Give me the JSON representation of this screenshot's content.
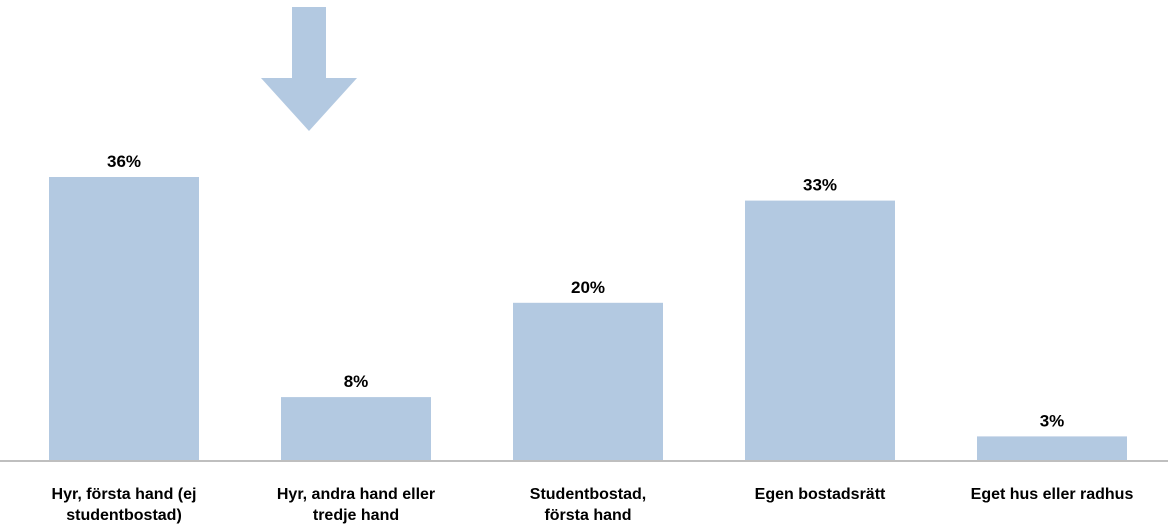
{
  "chart_data": {
    "type": "bar",
    "categories": [
      "Hyr, första hand (ej studentbostad)",
      "Hyr, andra hand eller tredje hand",
      "Studentbostad, första hand",
      "Egen bostadsrätt",
      "Eget hus eller radhus"
    ],
    "category_label_lines": [
      [
        "Hyr, första hand (ej",
        "studentbostad)"
      ],
      [
        "Hyr, andra hand eller",
        "tredje hand"
      ],
      [
        "Studentbostad,",
        "första hand"
      ],
      [
        "Egen bostadsrätt"
      ],
      [
        "Eget hus eller radhus"
      ]
    ],
    "values": [
      36,
      8,
      20,
      33,
      3
    ],
    "data_labels": [
      "36%",
      "8%",
      "20%",
      "33%",
      "3%"
    ],
    "unit": "%",
    "ylim": [
      0,
      36
    ],
    "grid": false,
    "legend": "none",
    "title": "",
    "xlabel": "",
    "ylabel": "",
    "colors": {
      "bar": "#b3c9e1",
      "arrow": "#b3c9e1",
      "axis": "#bfbfbf",
      "text": "#000000"
    },
    "annotations": [
      {
        "type": "down-arrow",
        "icon": "down-arrow-icon",
        "category_index": 1
      }
    ]
  }
}
